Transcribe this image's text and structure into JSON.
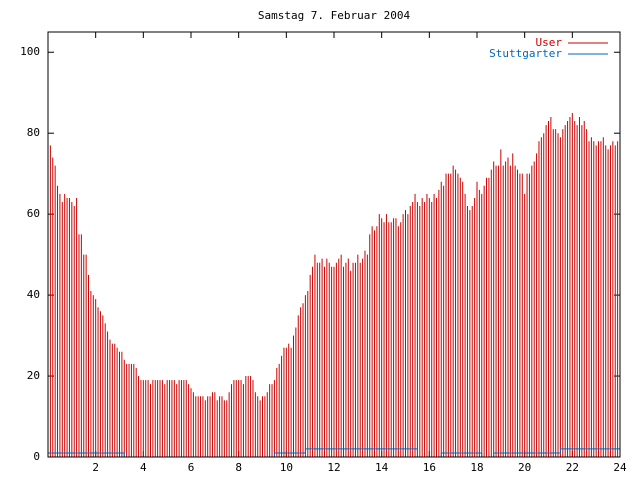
{
  "chart_data": {
    "type": "impulses",
    "title": "Samstag 7. Februar 2004",
    "xlim": [
      0,
      24
    ],
    "xticks": [
      2,
      4,
      6,
      8,
      10,
      12,
      14,
      16,
      18,
      20,
      22,
      24
    ],
    "ylim": [
      0,
      105
    ],
    "yticks": [
      0,
      20,
      40,
      60,
      80,
      100
    ],
    "legend": "top-right",
    "series": [
      {
        "name": "User",
        "color": "#cc0000",
        "x": [
          0,
          0.1,
          0.2,
          0.3,
          0.4,
          0.5,
          0.6,
          0.7,
          0.8,
          0.9,
          1,
          1.1,
          1.2,
          1.3,
          1.4,
          1.5,
          1.6,
          1.7,
          1.8,
          1.9,
          2,
          2.1,
          2.2,
          2.3,
          2.4,
          2.5,
          2.6,
          2.7,
          2.8,
          2.9,
          3,
          3.1,
          3.2,
          3.3,
          3.4,
          3.5,
          3.6,
          3.7,
          3.8,
          3.9,
          4,
          4.1,
          4.2,
          4.3,
          4.4,
          4.5,
          4.6,
          4.7,
          4.8,
          4.9,
          5,
          5.1,
          5.2,
          5.3,
          5.4,
          5.5,
          5.6,
          5.7,
          5.8,
          5.9,
          6,
          6.1,
          6.2,
          6.3,
          6.4,
          6.5,
          6.6,
          6.7,
          6.8,
          6.9,
          7,
          7.1,
          7.2,
          7.3,
          7.4,
          7.5,
          7.6,
          7.7,
          7.8,
          7.9,
          8,
          8.1,
          8.2,
          8.3,
          8.4,
          8.5,
          8.6,
          8.7,
          8.8,
          8.9,
          9,
          9.1,
          9.2,
          9.3,
          9.4,
          9.5,
          9.6,
          9.7,
          9.8,
          9.9,
          10,
          10.1,
          10.2,
          10.3,
          10.4,
          10.5,
          10.6,
          10.7,
          10.8,
          10.9,
          11,
          11.1,
          11.2,
          11.3,
          11.4,
          11.5,
          11.6,
          11.7,
          11.8,
          11.9,
          12,
          12.1,
          12.2,
          12.3,
          12.4,
          12.5,
          12.6,
          12.7,
          12.8,
          12.9,
          13,
          13.1,
          13.2,
          13.3,
          13.4,
          13.5,
          13.6,
          13.7,
          13.8,
          13.9,
          14,
          14.1,
          14.2,
          14.3,
          14.4,
          14.5,
          14.6,
          14.7,
          14.8,
          14.9,
          15,
          15.1,
          15.2,
          15.3,
          15.4,
          15.5,
          15.6,
          15.7,
          15.8,
          15.9,
          16,
          16.1,
          16.2,
          16.3,
          16.4,
          16.5,
          16.6,
          16.7,
          16.8,
          16.9,
          17,
          17.1,
          17.2,
          17.3,
          17.4,
          17.5,
          17.6,
          17.7,
          17.8,
          17.9,
          18,
          18.1,
          18.2,
          18.3,
          18.4,
          18.5,
          18.6,
          18.7,
          18.8,
          18.9,
          19,
          19.1,
          19.2,
          19.3,
          19.4,
          19.5,
          19.6,
          19.7,
          19.8,
          19.9,
          20,
          20.1,
          20.2,
          20.3,
          20.4,
          20.5,
          20.6,
          20.7,
          20.8,
          20.9,
          21,
          21.1,
          21.2,
          21.3,
          21.4,
          21.5,
          21.6,
          21.7,
          21.8,
          21.9,
          22,
          22.1,
          22.2,
          22.3,
          22.4,
          22.5,
          22.6,
          22.7,
          22.8,
          22.9,
          23,
          23.1,
          23.2,
          23.3,
          23.4,
          23.5,
          23.6,
          23.7,
          23.8,
          23.9
        ],
        "values": [
          79,
          77,
          74,
          72,
          67,
          65,
          63,
          65,
          64,
          64,
          63,
          62,
          64,
          55,
          55,
          50,
          50,
          45,
          41,
          40,
          39,
          37,
          36,
          35,
          33,
          31,
          29,
          28,
          28,
          27,
          26,
          26,
          24,
          23,
          23,
          23,
          23,
          22,
          20,
          19,
          19,
          19,
          19,
          18,
          19,
          19,
          19,
          19,
          19,
          18,
          19,
          19,
          19,
          19,
          18,
          19,
          19,
          19,
          19,
          18,
          17,
          16,
          15,
          15,
          15,
          15,
          14,
          15,
          15,
          16,
          16,
          14,
          15,
          15,
          14,
          14,
          16,
          18,
          19,
          19,
          19,
          19,
          18,
          20,
          20,
          20,
          19,
          16,
          15,
          14,
          15,
          15,
          16,
          18,
          18,
          19,
          22,
          23,
          25,
          27,
          27,
          28,
          27,
          30,
          32,
          35,
          37,
          38,
          40,
          41,
          45,
          47,
          50,
          48,
          48,
          49,
          47,
          49,
          48,
          47,
          47,
          48,
          49,
          50,
          47,
          48,
          49,
          46,
          48,
          48,
          50,
          48,
          49,
          51,
          50,
          55,
          57,
          56,
          57,
          60,
          59,
          58,
          60,
          58,
          58,
          59,
          59,
          57,
          58,
          60,
          61,
          60,
          62,
          63,
          65,
          63,
          62,
          64,
          63,
          65,
          64,
          63,
          65,
          64,
          66,
          68,
          67,
          70,
          70,
          70,
          72,
          71,
          70,
          69,
          68,
          65,
          62,
          61,
          62,
          64,
          68,
          66,
          65,
          67,
          69,
          69,
          71,
          73,
          72,
          72,
          76,
          72,
          73,
          74,
          72,
          75,
          72,
          71,
          70,
          70,
          65,
          70,
          70,
          72,
          73,
          75,
          78,
          79,
          80,
          82,
          83,
          84,
          81,
          81,
          80,
          79,
          81,
          82,
          83,
          84,
          85,
          83,
          82,
          84,
          82,
          83,
          81,
          78,
          79,
          78,
          77,
          78,
          78,
          79,
          77,
          76,
          77,
          78,
          77,
          78
        ]
      },
      {
        "name": "Stuttgarter",
        "color": "#0066bb",
        "x": [
          0,
          3.2,
          3.2,
          9.5,
          9.5,
          10.8,
          10.8,
          15.5,
          15.5,
          16.5,
          16.5,
          18.2,
          18.2,
          18.7,
          18.7,
          21.5,
          21.5,
          24
        ],
        "values": [
          1,
          1,
          0,
          0,
          1,
          1,
          2,
          2,
          0,
          0,
          1,
          1,
          0,
          0,
          1,
          1,
          2,
          2
        ]
      }
    ]
  }
}
